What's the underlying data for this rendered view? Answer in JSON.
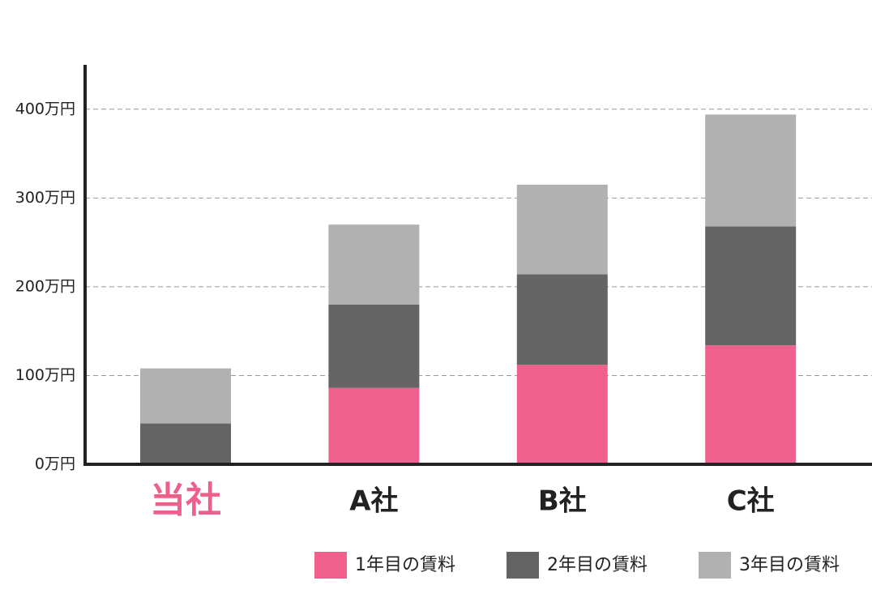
{
  "chart_data": {
    "type": "stacked_bar",
    "categories": [
      "当社",
      "A社",
      "B社",
      "C社"
    ],
    "highlight_category": 0,
    "highlight_color": "#ee5f8b",
    "series": [
      {
        "name": "1年目の賃料",
        "color": "#ef618c",
        "values": [
          0,
          86,
          112,
          134
        ]
      },
      {
        "name": "2年目の賃料",
        "color": "#646464",
        "values": [
          46,
          94,
          102,
          134
        ]
      },
      {
        "name": "3年目の賃料",
        "color": "#b1b1b1",
        "values": [
          62,
          90,
          101,
          126
        ]
      }
    ],
    "ylim": [
      0,
      450
    ],
    "yticks": [
      {
        "value": 0,
        "label": "0万円"
      },
      {
        "value": 100,
        "label": "100万円"
      },
      {
        "value": 200,
        "label": "200万円"
      },
      {
        "value": 300,
        "label": "300万円"
      },
      {
        "value": 400,
        "label": "400万円"
      }
    ],
    "grid": true
  }
}
